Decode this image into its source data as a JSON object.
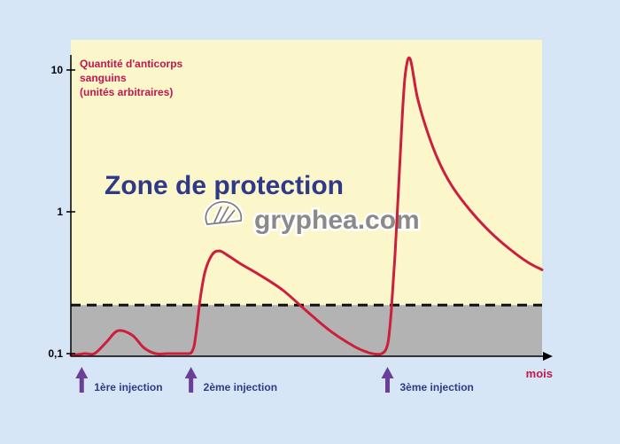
{
  "chart_data": {
    "type": "line",
    "scale": "log",
    "ylabel_lines": [
      "Quantité d'anticorps",
      "sanguins",
      "(unités arbitraires)"
    ],
    "xlabel": "mois",
    "yticks": [
      {
        "value": 0.1,
        "label": "0,1"
      },
      {
        "value": 1,
        "label": "1"
      },
      {
        "value": 10,
        "label": "10"
      }
    ],
    "ylim": [
      0.1,
      12
    ],
    "xlim": [
      0,
      100
    ],
    "zone_label": "Zone de protection",
    "protection_threshold": 0.22,
    "watermark": "gryphea.com",
    "injections": [
      {
        "x": 2.3,
        "label": "1ère injection"
      },
      {
        "x": 25.5,
        "label": "2ème injection"
      },
      {
        "x": 67.2,
        "label": "3ème injection"
      }
    ],
    "series": [
      {
        "x": [
          0,
          3,
          5,
          7.5,
          10,
          13,
          15.5,
          18,
          20.5,
          22.5,
          24,
          25,
          25.6,
          26.2,
          26.8,
          27.5,
          28.5,
          30,
          31.5,
          33,
          36,
          40,
          45,
          50,
          55,
          60,
          63,
          65,
          66,
          66.8,
          67.4,
          68,
          68.8,
          69.6,
          70.3,
          71,
          72,
          73.5,
          75.5,
          78,
          81,
          85,
          89,
          93,
          97,
          100
        ],
        "y": [
          0.097,
          0.1,
          0.1,
          0.12,
          0.145,
          0.135,
          0.11,
          0.1,
          0.1,
          0.1,
          0.1,
          0.1,
          0.102,
          0.115,
          0.16,
          0.25,
          0.38,
          0.5,
          0.53,
          0.5,
          0.43,
          0.36,
          0.28,
          0.2,
          0.145,
          0.113,
          0.102,
          0.099,
          0.1,
          0.106,
          0.125,
          0.2,
          0.5,
          1.6,
          4.5,
          9.5,
          12,
          6.5,
          3.8,
          2.3,
          1.5,
          1.0,
          0.72,
          0.55,
          0.44,
          0.39
        ]
      }
    ],
    "colors": {
      "zone_bg": "#fcf6cb",
      "below_bg": "#b3b3b3",
      "curve": "#cc1f3c",
      "axis_label": "#c0174d",
      "zone_text": "#2e3a88",
      "arrow": "#6b3f97",
      "injection_text": "#2e3a88"
    }
  }
}
